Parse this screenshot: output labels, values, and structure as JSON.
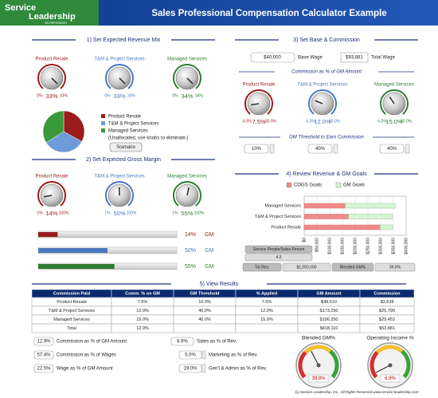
{
  "header": {
    "logo_line1": "Service",
    "logo_line2": "Leadership",
    "logo_sub": "INCORPORATED",
    "title": "Sales Professional Compensation Calculator Example"
  },
  "revenue_mix": {
    "heading": "1) Set Expected Revenue Mix",
    "knobs": [
      {
        "label": "Product Resale",
        "color": "#9b1c1c",
        "min": {
          "value": 0,
          "label": "0%"
        },
        "value": {
          "value": 33,
          "label": "33%"
        },
        "max": {
          "value": 33,
          "label": "33%"
        }
      },
      {
        "label": "T&M & Project Services",
        "color": "#4a78c0",
        "min": {
          "value": 0,
          "label": "0%"
        },
        "value": {
          "value": 33,
          "label": "33%"
        },
        "max": {
          "value": 33,
          "label": "33%"
        }
      },
      {
        "label": "Managed Services",
        "color": "#2e7d32",
        "min": {
          "value": 0,
          "label": "0%"
        },
        "value": {
          "value": 34,
          "label": "34%"
        },
        "max": {
          "value": 34,
          "label": "34%"
        }
      }
    ],
    "legend": [
      {
        "name": "Product Resale",
        "color": "#9b1c1c"
      },
      {
        "name": "T&M & Project Services",
        "color": "#6d9ad8"
      },
      {
        "name": "Managed Services",
        "color": "#3a9a3a"
      }
    ],
    "note": "(Unallocated, use knobs to eliminate.)",
    "button": "Scenario"
  },
  "gross_margin": {
    "heading": "2) Set Expected Gross Margin",
    "knobs": [
      {
        "label": "Product Resale",
        "color": "#9b1c1c",
        "min": {
          "value": 1,
          "label": "1%"
        },
        "value": {
          "value": 14,
          "label": "14%"
        },
        "max": {
          "value": 100,
          "label": "100%"
        }
      },
      {
        "label": "T&M & Project Services",
        "color": "#4a78c0",
        "min": {
          "value": 1,
          "label": "1%"
        },
        "value": {
          "value": 50,
          "label": "50%"
        },
        "max": {
          "value": 100,
          "label": "100%"
        }
      },
      {
        "label": "Managed Services",
        "color": "#2e7d32",
        "min": {
          "value": 1,
          "label": "1%"
        },
        "value": {
          "value": 55,
          "label": "55%"
        },
        "max": {
          "value": 100,
          "label": "100%"
        }
      }
    ],
    "bar_suffix": "GM"
  },
  "base_commission": {
    "heading": "3) Set Base & Commission",
    "base_wage": {
      "value": "$40,000",
      "label": "Base Wage"
    },
    "total_wage": {
      "value": "$93,881",
      "label": "Total Wage"
    },
    "subheading": "Commission as % of GM Amount",
    "knobs": [
      {
        "label": "Product Resale",
        "color": "#9b1c1c",
        "min": {
          "value": 4,
          "label": "4.0%"
        },
        "value": {
          "value": 7.5,
          "label": "7.5%"
        },
        "max": {
          "value": 30,
          "label": "30.0%"
        }
      },
      {
        "label": "T&M & Project Services",
        "color": "#4a78c0",
        "min": {
          "value": 6,
          "label": "6.0%"
        },
        "value": {
          "value": 12,
          "label": "12.0%"
        },
        "max": {
          "value": 30,
          "label": "30.0%"
        }
      },
      {
        "label": "Managed Services",
        "color": "#2e7d32",
        "min": {
          "value": 6,
          "label": "6.0%"
        },
        "value": {
          "value": 15,
          "label": "15.0%"
        },
        "max": {
          "value": 30,
          "label": "30.0%"
        }
      }
    ],
    "threshold_heading": "GM Threshold to Earn Commission",
    "thresholds": [
      "10%",
      "40%",
      "40%"
    ]
  },
  "review": {
    "heading": "4) Review Revenue & GM Goals",
    "categories": [
      "Managed Services",
      "T&M & Project Services",
      "Product Resale"
    ],
    "series": [
      {
        "name": "COGS Goals",
        "color": "#f08a8a",
        "values": [
          160650,
          173250,
          297990
        ]
      },
      {
        "name": "GM Goals",
        "color": "#d6f5d6",
        "values": [
          196350,
          173250,
          48510
        ]
      }
    ],
    "xlim": [
      0,
      400000
    ],
    "xticks": [
      {
        "value": 0,
        "label": "$0"
      },
      {
        "value": 50000,
        "label": "$50,000"
      },
      {
        "value": 100000,
        "label": "$100,000"
      },
      {
        "value": 150000,
        "label": "$150,000"
      },
      {
        "value": 200000,
        "label": "$200,000"
      },
      {
        "value": 250000,
        "label": "$250,000"
      },
      {
        "value": 300000,
        "label": "$300,000"
      },
      {
        "value": 350000,
        "label": "$350,000"
      },
      {
        "value": 400000,
        "label": "$400,000"
      }
    ],
    "people_label": "Service People/Sales Person",
    "people_value": "4.3",
    "tot_rev_label": "Tot Rev.",
    "tot_rev": "$1,050,000",
    "blended_label": "Blended GM%"
  },
  "results": {
    "heading": "5) View Results",
    "columns": [
      "Commission Paid",
      "Comm. % on GM",
      "GM Threshold",
      "% Applied",
      "GM Amount",
      "Commission"
    ],
    "rows": [
      [
        "Product Resale",
        "7.5%",
        "10.0%",
        "7.5%",
        "$48,510",
        "$3,638"
      ],
      [
        "T&M & Project Services",
        "12.0%",
        "40.0%",
        "12.0%",
        "$173,250",
        "$20,790"
      ],
      [
        "Managed Services",
        "15.0%",
        "40.0%",
        "15.0%",
        "$196,350",
        "$29,453"
      ],
      [
        "Total",
        "12.9%",
        null,
        null,
        "$418,110",
        "$53,881"
      ]
    ],
    "stats_left": [
      {
        "value": "12.9%",
        "label": "Commission as % of GM Amount"
      },
      {
        "value": "57.4%",
        "label": "Commission as % of Wages"
      },
      {
        "value": "22.5%",
        "label": "Wage as % of GM Amount"
      }
    ],
    "stats_right": [
      {
        "value": "8.9%",
        "label": "Sales as % of Rev."
      },
      {
        "value": "5.0%",
        "label": "Marketing as % of Rev."
      },
      {
        "value": "19.0%",
        "label": "Gen'l & Admin as % of Rev."
      }
    ],
    "gauges": [
      {
        "label": "Blended GM%",
        "value": 39.8,
        "value_label": "39.8%"
      },
      {
        "label": "Operating Income %",
        "value": 6.9,
        "value_label": "6.9%"
      }
    ],
    "footer": "(c) Service Leadership, Inc., All Rights Reserved www.service-leadership.com"
  }
}
